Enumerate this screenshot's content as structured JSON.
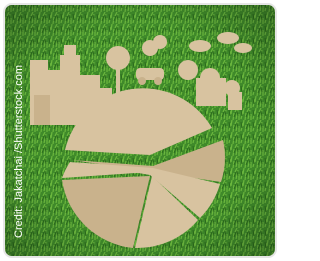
{
  "credit": "Credit: Jakatchai /Shutterstock.com"
}
